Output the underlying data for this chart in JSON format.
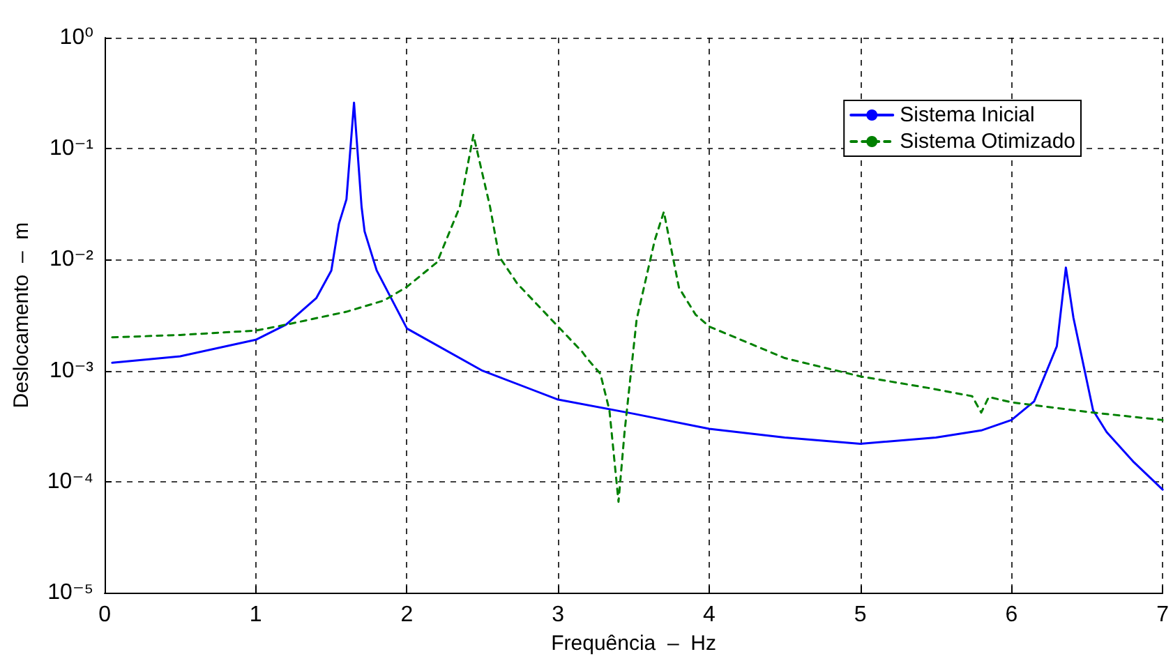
{
  "chart_data": {
    "type": "line",
    "xlabel": "Frequência  –  Hz",
    "ylabel": "Deslocamento  –  m",
    "log": "y",
    "grid": true,
    "legend": "top right",
    "marker": "none",
    "xlim": [
      0,
      7
    ],
    "xticks": [
      0,
      1,
      2,
      3,
      4,
      5,
      6,
      7
    ],
    "ylim": [
      1e-05,
      1
    ],
    "yticks": [
      {
        "value": 1e-05,
        "label": "10⁻⁵"
      },
      {
        "value": 0.0001,
        "label": "10⁻⁴"
      },
      {
        "value": 0.001,
        "label": "10⁻³"
      },
      {
        "value": 0.01,
        "label": "10⁻²"
      },
      {
        "value": 0.1,
        "label": "10⁻¹"
      },
      {
        "value": 1,
        "label": "10⁰"
      }
    ],
    "series": [
      {
        "name": "Sistema Inicial",
        "color": "#0000ff",
        "line_style": "solid",
        "x": [
          0.05,
          0.5,
          1,
          1.2,
          1.4,
          1.5,
          1.55,
          1.6,
          1.65,
          1.7,
          1.72,
          1.8,
          2,
          2.5,
          3,
          3.5,
          4,
          4.5,
          5,
          5.5,
          5.8,
          6,
          6.15,
          6.3,
          6.36,
          6.41,
          6.54,
          6.63,
          6.81,
          7
        ],
        "values": [
          0.00118,
          0.00135,
          0.0019,
          0.0026,
          0.0045,
          0.008,
          0.021,
          0.035,
          0.26,
          0.03,
          0.018,
          0.008,
          0.0024,
          0.001,
          0.00055,
          0.00041,
          0.0003,
          0.00025,
          0.00022,
          0.00025,
          0.00029,
          0.00036,
          0.00053,
          0.00166,
          0.0085,
          0.003,
          0.00044,
          0.00028,
          0.00015,
          8.5e-05
        ]
      },
      {
        "name": "Sistema Otimizado",
        "color": "#008000",
        "line_style": "dashed",
        "x": [
          0.05,
          0.5,
          1,
          1.2,
          1.6,
          1.85,
          2,
          2.2,
          2.35,
          2.44,
          2.55,
          2.61,
          2.73,
          3,
          3.16,
          3.19,
          3.28,
          3.34,
          3.4,
          3.44,
          3.52,
          3.64,
          3.7,
          3.8,
          3.91,
          4,
          4.5,
          5,
          5.45,
          5.74,
          5.8,
          5.85,
          6,
          6.54,
          7
        ],
        "values": [
          0.002,
          0.0021,
          0.0023,
          0.0026,
          0.0034,
          0.0043,
          0.0057,
          0.0095,
          0.03,
          0.133,
          0.03,
          0.0107,
          0.0061,
          0.0025,
          0.00148,
          0.0013,
          0.00094,
          0.00044,
          6.6e-05,
          0.00028,
          0.0029,
          0.015,
          0.027,
          0.0056,
          0.0032,
          0.0025,
          0.0013,
          0.00089,
          0.0007,
          0.00059,
          0.00042,
          0.00058,
          0.00052,
          0.00042,
          0.00036
        ]
      }
    ]
  }
}
